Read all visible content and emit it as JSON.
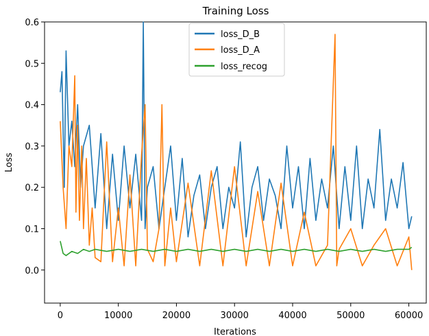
{
  "chart_data": {
    "type": "line",
    "title": "Training Loss",
    "xlabel": "Iterations",
    "ylabel": "Loss",
    "xlim": [
      -2700,
      63000
    ],
    "ylim": [
      -0.08,
      0.6
    ],
    "xticks": [
      {
        "value": 0,
        "label": "0"
      },
      {
        "value": 10000,
        "label": "10000"
      },
      {
        "value": 20000,
        "label": "20000"
      },
      {
        "value": 30000,
        "label": "30000"
      },
      {
        "value": 40000,
        "label": "40000"
      },
      {
        "value": 50000,
        "label": "50000"
      },
      {
        "value": 60000,
        "label": "60000"
      }
    ],
    "yticks": [
      {
        "value": 0.0,
        "label": "0.0"
      },
      {
        "value": 0.1,
        "label": "0.1"
      },
      {
        "value": 0.2,
        "label": "0.2"
      },
      {
        "value": 0.3,
        "label": "0.3"
      },
      {
        "value": 0.4,
        "label": "0.4"
      },
      {
        "value": 0.5,
        "label": "0.5"
      },
      {
        "value": 0.6,
        "label": "0.6"
      }
    ],
    "grid": false,
    "legend": "top-center",
    "series": [
      {
        "name": "loss_D_B",
        "color": "#1f77b4",
        "x": [
          0,
          300,
          700,
          1000,
          1500,
          2000,
          2500,
          3000,
          3500,
          4000,
          5000,
          6000,
          7000,
          8000,
          9000,
          10000,
          11000,
          12000,
          13000,
          14000,
          14300,
          14600,
          15000,
          16000,
          17000,
          18000,
          19000,
          20000,
          21000,
          22000,
          23000,
          24000,
          25000,
          26000,
          27000,
          28000,
          29000,
          30000,
          31000,
          32000,
          33000,
          34000,
          35000,
          36000,
          37000,
          38000,
          39000,
          40000,
          41000,
          42000,
          43000,
          44000,
          45000,
          46000,
          47000,
          48000,
          49000,
          50000,
          51000,
          52000,
          53000,
          54000,
          55000,
          56000,
          57000,
          58000,
          59000,
          60000,
          60500
        ],
        "y": [
          0.43,
          0.48,
          0.2,
          0.53,
          0.3,
          0.36,
          0.25,
          0.4,
          0.2,
          0.3,
          0.35,
          0.15,
          0.33,
          0.1,
          0.28,
          0.12,
          0.3,
          0.15,
          0.28,
          0.12,
          0.6,
          0.1,
          0.2,
          0.25,
          0.1,
          0.2,
          0.3,
          0.12,
          0.27,
          0.08,
          0.18,
          0.23,
          0.1,
          0.2,
          0.25,
          0.1,
          0.2,
          0.15,
          0.31,
          0.08,
          0.2,
          0.25,
          0.12,
          0.22,
          0.18,
          0.1,
          0.3,
          0.15,
          0.25,
          0.1,
          0.27,
          0.12,
          0.22,
          0.15,
          0.3,
          0.1,
          0.25,
          0.12,
          0.3,
          0.1,
          0.22,
          0.15,
          0.34,
          0.12,
          0.22,
          0.15,
          0.26,
          0.1,
          0.13
        ]
      },
      {
        "name": "loss_D_A",
        "color": "#ff7f0e",
        "x": [
          0,
          500,
          1000,
          1500,
          2000,
          2500,
          2700,
          3000,
          3300,
          3700,
          4000,
          4500,
          5000,
          5500,
          6000,
          7000,
          8000,
          9000,
          10000,
          11000,
          12000,
          13000,
          14000,
          14600,
          15000,
          16000,
          17000,
          17500,
          18000,
          19000,
          20000,
          22000,
          24000,
          26000,
          28000,
          30000,
          32000,
          34000,
          36000,
          38000,
          40000,
          42000,
          44000,
          46000,
          47300,
          47600,
          48000,
          50000,
          52000,
          54000,
          56000,
          58000,
          60000,
          60500
        ],
        "y": [
          0.36,
          0.2,
          0.1,
          0.3,
          0.25,
          0.47,
          0.14,
          0.35,
          0.12,
          0.3,
          0.1,
          0.27,
          0.06,
          0.15,
          0.03,
          0.02,
          0.31,
          0.02,
          0.15,
          0.01,
          0.23,
          0.01,
          0.28,
          0.4,
          0.05,
          0.02,
          0.1,
          0.4,
          0.01,
          0.15,
          0.02,
          0.21,
          0.01,
          0.24,
          0.01,
          0.25,
          0.01,
          0.19,
          0.01,
          0.21,
          0.01,
          0.14,
          0.01,
          0.06,
          0.57,
          0.01,
          0.05,
          0.1,
          0.01,
          0.06,
          0.1,
          0.01,
          0.08,
          0.0
        ]
      },
      {
        "name": "loss_recog",
        "color": "#2ca02c",
        "x": [
          0,
          500,
          1000,
          2000,
          3000,
          4000,
          5000,
          6000,
          8000,
          10000,
          12000,
          14000,
          16000,
          18000,
          20000,
          22000,
          24000,
          26000,
          28000,
          30000,
          32000,
          34000,
          36000,
          38000,
          40000,
          42000,
          44000,
          46000,
          48000,
          50000,
          52000,
          54000,
          56000,
          58000,
          60000,
          60500
        ],
        "y": [
          0.07,
          0.04,
          0.035,
          0.045,
          0.04,
          0.05,
          0.045,
          0.05,
          0.045,
          0.05,
          0.045,
          0.05,
          0.045,
          0.05,
          0.045,
          0.05,
          0.045,
          0.05,
          0.045,
          0.05,
          0.045,
          0.05,
          0.045,
          0.05,
          0.045,
          0.05,
          0.045,
          0.05,
          0.045,
          0.05,
          0.045,
          0.05,
          0.045,
          0.05,
          0.05,
          0.055
        ]
      }
    ]
  }
}
